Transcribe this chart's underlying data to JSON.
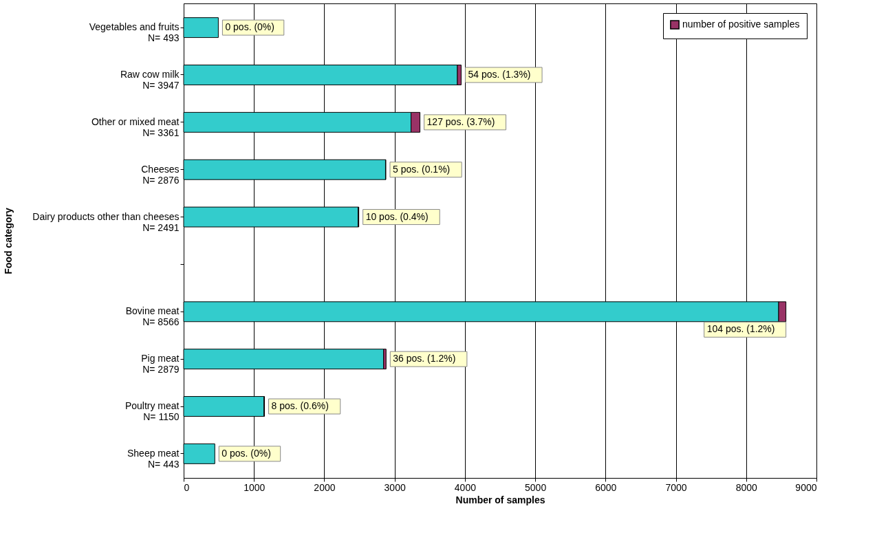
{
  "chart_data": {
    "type": "bar",
    "orientation": "horizontal",
    "stacked": true,
    "xlabel": "Number of samples",
    "ylabel": "Food category",
    "categories": [
      "Vegetables and fruits\nN= 493",
      "Raw cow milk\nN= 3947",
      "Other or mixed meat\nN= 3361",
      "Cheeses\nN= 2876",
      "Dairy products other than cheeses\n\nN= 2491",
      null,
      "Bovine meat\nN= 8566",
      "Pig meat\nN= 2879",
      "Poultry meat\nN= 1150",
      "Sheep meat\nN= 443"
    ],
    "series": [
      {
        "color": "#33cccc",
        "values": [
          493,
          3893,
          3234,
          2871,
          2481,
          null,
          8462,
          2843,
          1142,
          443
        ]
      },
      {
        "name": "number of positive samples",
        "color": "#993366",
        "values": [
          0,
          54,
          127,
          5,
          10,
          null,
          104,
          36,
          8,
          0
        ],
        "value_labels": [
          "0 pos. (0%)",
          "54 pos. (1.3%)",
          "127 pos. (3.7%)",
          "5 pos. (0.1%)",
          "10 pos. (0.4%)",
          null,
          "104 pos. (1.2%)",
          "36 pos. (1.2%)",
          "8 pos. (0.6%)",
          "0 pos. (0%)"
        ]
      }
    ],
    "xlim": [
      0,
      9000
    ],
    "xticks": [
      0,
      1000,
      2000,
      3000,
      4000,
      5000,
      6000,
      7000,
      8000,
      9000
    ],
    "grid": "x",
    "legend": "top right"
  }
}
